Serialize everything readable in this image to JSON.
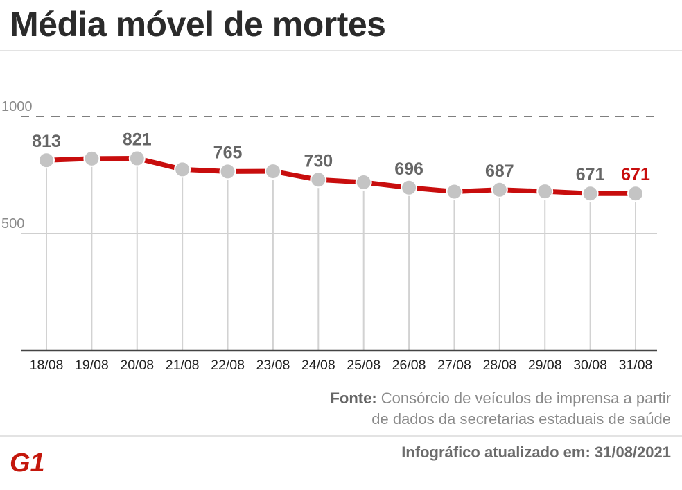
{
  "title": "Média móvel de mortes",
  "colors": {
    "line": "#c80d0d",
    "point": "#c4c4c4",
    "label": "#666666",
    "highlight": "#c80d0d",
    "logo": "#c4170c"
  },
  "chart_data": {
    "type": "line",
    "title": "Média móvel de mortes",
    "xlabel": "",
    "ylabel": "",
    "categories": [
      "18/08",
      "19/08",
      "20/08",
      "21/08",
      "22/08",
      "23/08",
      "24/08",
      "25/08",
      "26/08",
      "27/08",
      "28/08",
      "29/08",
      "30/08",
      "31/08"
    ],
    "values": [
      813,
      820,
      821,
      774,
      765,
      766,
      730,
      719,
      696,
      679,
      687,
      680,
      671,
      671
    ],
    "labeled_values": [
      "813",
      null,
      "821",
      null,
      "765",
      null,
      "730",
      null,
      "696",
      null,
      "687",
      null,
      "671",
      "671"
    ],
    "yticks": [
      "1000",
      "500"
    ],
    "ylim": [
      0,
      1000
    ],
    "dashed_gridline": "1000",
    "grid": true,
    "legend": "none"
  },
  "source": {
    "label": "Fonte:",
    "text": "Consórcio de veículos de imprensa a partir",
    "text2": "de dados da secretarias estaduais de saúde"
  },
  "updated": "Infográfico atualizado em: 31/08/2021",
  "logo": "G1"
}
